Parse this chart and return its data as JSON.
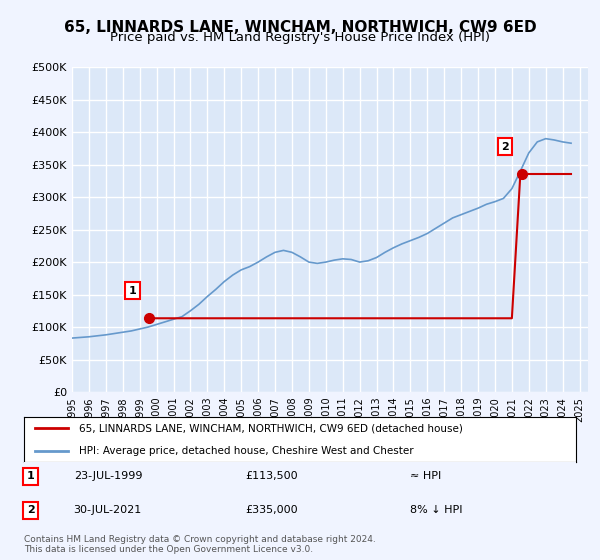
{
  "title": "65, LINNARDS LANE, WINCHAM, NORTHWICH, CW9 6ED",
  "subtitle": "Price paid vs. HM Land Registry's House Price Index (HPI)",
  "ylabel": "",
  "ylim": [
    0,
    500000
  ],
  "yticks": [
    0,
    50000,
    100000,
    150000,
    200000,
    250000,
    300000,
    350000,
    400000,
    450000,
    500000
  ],
  "ytick_labels": [
    "£0",
    "£50K",
    "£100K",
    "£150K",
    "£200K",
    "£250K",
    "£300K",
    "£350K",
    "£400K",
    "£450K",
    "£500K"
  ],
  "background_color": "#f0f4ff",
  "plot_bg_color": "#dce8f8",
  "grid_color": "#ffffff",
  "hpi_color": "#6699cc",
  "price_color": "#cc0000",
  "marker_color": "#cc0000",
  "title_fontsize": 11,
  "subtitle_fontsize": 9.5,
  "legend_line1": "65, LINNARDS LANE, WINCHAM, NORTHWICH, CW9 6ED (detached house)",
  "legend_line2": "HPI: Average price, detached house, Cheshire West and Chester",
  "point1_label": "1",
  "point1_date": "23-JUL-1999",
  "point1_price": "£113,500",
  "point1_hpi": "≈ HPI",
  "point2_label": "2",
  "point2_date": "30-JUL-2021",
  "point2_price": "£335,000",
  "point2_hpi": "8% ↓ HPI",
  "footer": "Contains HM Land Registry data © Crown copyright and database right 2024.\nThis data is licensed under the Open Government Licence v3.0.",
  "sale1_year": 1999.55,
  "sale1_price": 113500,
  "sale2_year": 2021.58,
  "sale2_price": 335000,
  "hpi_years": [
    1995,
    1995.5,
    1996,
    1996.5,
    1997,
    1997.5,
    1998,
    1998.5,
    1999,
    1999.5,
    2000,
    2000.5,
    2001,
    2001.5,
    2002,
    2002.5,
    2003,
    2003.5,
    2004,
    2004.5,
    2005,
    2005.5,
    2006,
    2006.5,
    2007,
    2007.5,
    2008,
    2008.5,
    2009,
    2009.5,
    2010,
    2010.5,
    2011,
    2011.5,
    2012,
    2012.5,
    2013,
    2013.5,
    2014,
    2014.5,
    2015,
    2015.5,
    2016,
    2016.5,
    2017,
    2017.5,
    2018,
    2018.5,
    2019,
    2019.5,
    2020,
    2020.5,
    2021,
    2021.5,
    2022,
    2022.5,
    2023,
    2023.5,
    2024,
    2024.5
  ],
  "hpi_values": [
    83000,
    84000,
    85000,
    86500,
    88000,
    90000,
    92000,
    94000,
    97000,
    100000,
    104000,
    108000,
    112000,
    116000,
    125000,
    135000,
    147000,
    158000,
    170000,
    180000,
    188000,
    193000,
    200000,
    208000,
    215000,
    218000,
    215000,
    208000,
    200000,
    198000,
    200000,
    203000,
    205000,
    204000,
    200000,
    202000,
    207000,
    215000,
    222000,
    228000,
    233000,
    238000,
    244000,
    252000,
    260000,
    268000,
    273000,
    278000,
    283000,
    289000,
    293000,
    298000,
    313000,
    340000,
    368000,
    385000,
    390000,
    388000,
    385000,
    383000
  ],
  "price_years": [
    1995,
    1995.5,
    1996,
    1996.5,
    1997,
    1997.5,
    1998,
    1998.5,
    1999,
    1999.5,
    2000,
    2000.5,
    2001,
    2001.5,
    2002,
    2002.5,
    2003,
    2003.5,
    2004,
    2004.5,
    2005,
    2005.5,
    2006,
    2006.5,
    2007,
    2007.5,
    2008,
    2008.5,
    2009,
    2009.5,
    2010,
    2010.5,
    2011,
    2011.5,
    2012,
    2012.5,
    2013,
    2013.5,
    2014,
    2014.5,
    2015,
    2015.5,
    2016,
    2016.5,
    2017,
    2017.5,
    2018,
    2018.5,
    2019,
    2019.5,
    2020,
    2020.5,
    2021,
    2021.5,
    2022,
    2022.5,
    2023,
    2023.5,
    2024,
    2024.5
  ],
  "price_values": [
    null,
    null,
    null,
    null,
    null,
    null,
    null,
    null,
    null,
    113500,
    113500,
    113500,
    113500,
    113500,
    113500,
    113500,
    113500,
    113500,
    113500,
    113500,
    113500,
    113500,
    113500,
    113500,
    113500,
    113500,
    113500,
    113500,
    113500,
    113500,
    113500,
    113500,
    113500,
    113500,
    113500,
    113500,
    113500,
    113500,
    113500,
    113500,
    113500,
    113500,
    113500,
    113500,
    113500,
    113500,
    113500,
    113500,
    113500,
    113500,
    113500,
    113500,
    113500,
    335000,
    335000,
    335000,
    335000,
    335000,
    335000,
    335000
  ],
  "xtick_years": [
    1995,
    1996,
    1997,
    1998,
    1999,
    2000,
    2001,
    2002,
    2003,
    2004,
    2005,
    2006,
    2007,
    2008,
    2009,
    2010,
    2011,
    2012,
    2013,
    2014,
    2015,
    2016,
    2017,
    2018,
    2019,
    2020,
    2021,
    2022,
    2023,
    2024,
    2025
  ],
  "xlim": [
    1995,
    2025.5
  ]
}
